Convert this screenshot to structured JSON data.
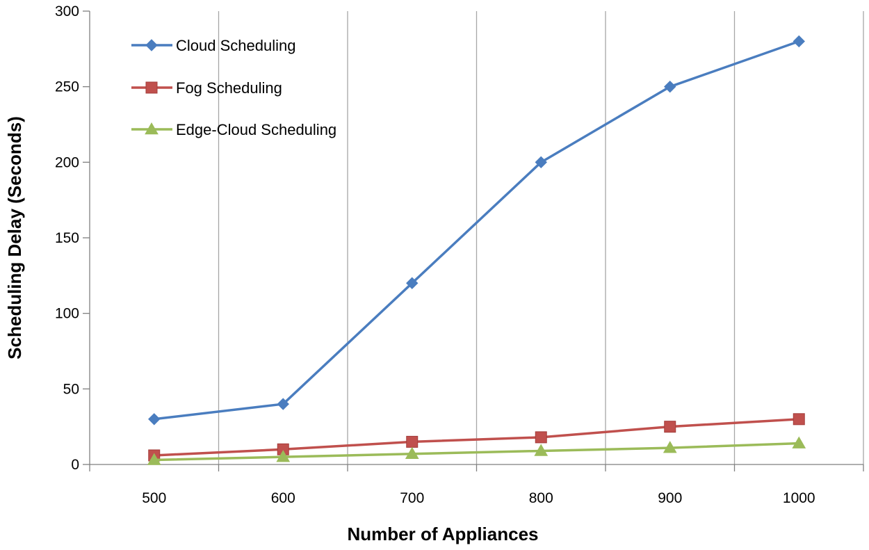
{
  "chart_data": {
    "type": "line",
    "title": "",
    "xlabel": "Number of Appliances",
    "ylabel": "Scheduling Delay (Seconds)",
    "x": [
      500,
      600,
      700,
      800,
      900,
      1000
    ],
    "xlim": [
      450,
      1050
    ],
    "xticks": [
      500,
      600,
      700,
      800,
      900,
      1000
    ],
    "ylim": [
      0,
      300
    ],
    "yticks": [
      0,
      50,
      100,
      150,
      200,
      250,
      300
    ],
    "grid": "vertical",
    "legend": "top-left",
    "series": [
      {
        "name": "Cloud Scheduling",
        "color": "#4a7dbf",
        "marker": "diamond",
        "values": [
          30,
          40,
          120,
          200,
          250,
          280
        ]
      },
      {
        "name": "Fog Scheduling",
        "color": "#c0504d",
        "marker": "square",
        "values": [
          6,
          10,
          15,
          18,
          25,
          30
        ]
      },
      {
        "name": "Edge-Cloud Scheduling",
        "color": "#9bbb59",
        "marker": "triangle",
        "values": [
          3,
          5,
          7,
          9,
          11,
          14
        ]
      }
    ]
  }
}
